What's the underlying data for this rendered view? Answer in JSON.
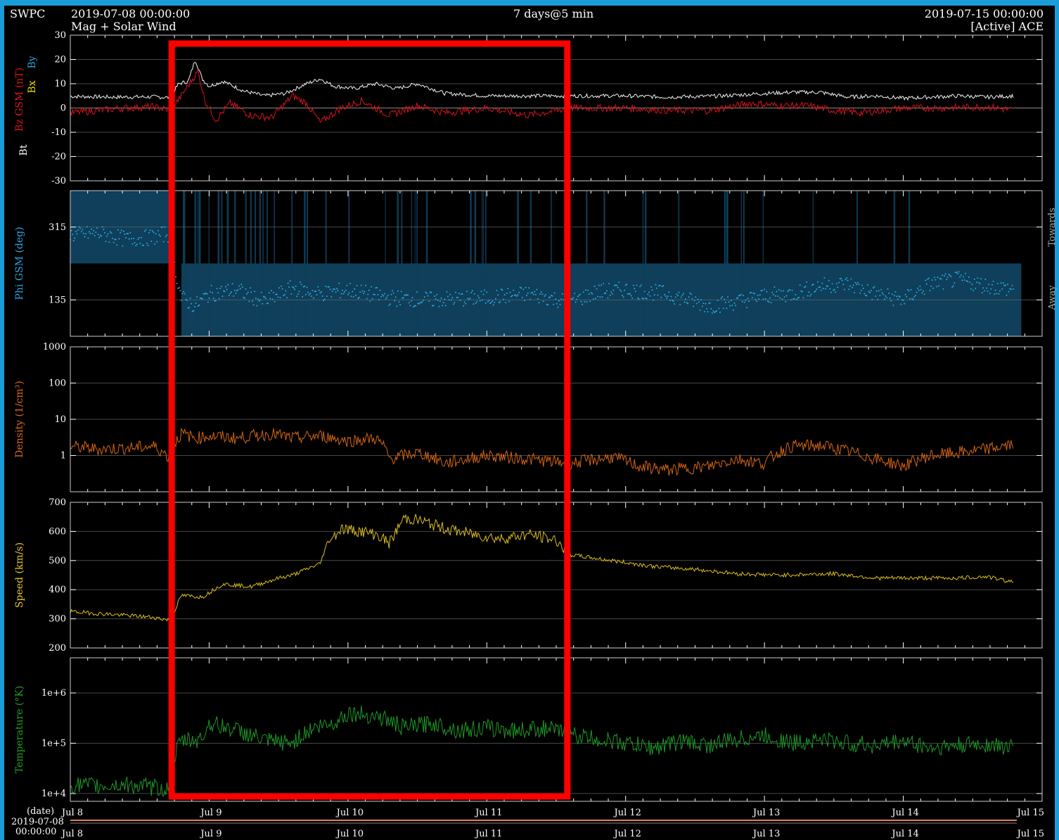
{
  "header": {
    "org": "SWPC",
    "start_time": "2019-07-08 00:00:00",
    "subtitle": "Mag + Solar Wind",
    "span": "7 days@5 min",
    "end_time": "2019-07-15 00:00:00",
    "source": "[Active] ACE"
  },
  "colors": {
    "background": "#000000",
    "frame": "#1a9cd8",
    "bt": "#ffffff",
    "bz": "#e0141e",
    "bx": "#f0e000",
    "by": "#27a6e0",
    "phi": "#2aa8e0",
    "phi_band": "#0f3f5a",
    "density": "#e06a14",
    "speed": "#e8c820",
    "temperature": "#1fa028",
    "highlight": "#ff0000"
  },
  "x_axis": {
    "date_label": "(date)",
    "origin_date": "2019-07-08",
    "origin_time": "00:00:00",
    "ticks": [
      "Jul 8",
      "Jul 9",
      "Jul 10",
      "Jul 11",
      "Jul 12",
      "Jul 13",
      "Jul 14",
      "Jul 15"
    ]
  },
  "highlight_box": {
    "start_day": 0.73,
    "end_day": 3.58,
    "color": "red"
  },
  "chart_data": [
    {
      "type": "line",
      "panel": "mag",
      "ylabel": [
        "Bz GSM (nT)",
        "Bt",
        "Bx",
        "By"
      ],
      "ylim": [
        -30,
        30
      ],
      "yticks": [
        "30",
        "20",
        "10",
        "0",
        "-10",
        "-20",
        "-30"
      ],
      "ytick_values": [
        30,
        20,
        10,
        0,
        -10,
        -20,
        -30
      ],
      "x_unit": "days since 2019-07-08 00:00",
      "series": [
        {
          "name": "Bt",
          "color": "#ffffff",
          "x": [
            0,
            0.3,
            0.6,
            0.72,
            0.78,
            0.85,
            0.9,
            0.95,
            1.0,
            1.1,
            1.25,
            1.4,
            1.55,
            1.7,
            1.8,
            1.9,
            2.05,
            2.2,
            2.35,
            2.5,
            2.7,
            3.0,
            3.3,
            3.6,
            4.0,
            4.3,
            4.7,
            5.0,
            5.2,
            5.4,
            5.6,
            5.8,
            6.0,
            6.2,
            6.4,
            6.6,
            6.8
          ],
          "y": [
            4.8,
            4.5,
            4.6,
            4.3,
            10,
            11,
            20,
            12,
            9,
            11,
            7,
            5,
            6,
            10,
            12,
            9,
            8,
            10,
            8,
            10,
            6,
            5,
            5,
            5,
            5,
            4.5,
            5,
            6,
            6.5,
            6.5,
            4.5,
            5,
            4,
            4.5,
            5,
            4.5,
            5
          ]
        },
        {
          "name": "Bz GSM",
          "color": "#e0141e",
          "x": [
            0,
            0.2,
            0.4,
            0.6,
            0.72,
            0.8,
            0.88,
            0.92,
            0.97,
            1.05,
            1.15,
            1.3,
            1.45,
            1.6,
            1.7,
            1.8,
            1.95,
            2.1,
            2.3,
            2.5,
            2.7,
            3.0,
            3.3,
            3.6,
            4.0,
            4.3,
            4.6,
            4.9,
            5.1,
            5.3,
            5.5,
            5.7,
            6.0,
            6.3,
            6.6,
            6.8
          ],
          "y": [
            -2,
            -1,
            0,
            0.5,
            -1,
            5,
            12,
            15,
            3,
            -5,
            2,
            -3,
            -4,
            5,
            2,
            -6,
            0,
            3,
            -3,
            1,
            -2,
            0,
            -3,
            0,
            0,
            -1,
            -1,
            2,
            1,
            1,
            -1,
            -2,
            0,
            0,
            0.5,
            -1
          ]
        }
      ]
    },
    {
      "type": "scatter",
      "panel": "phi",
      "ylabel": "Phi GSM (deg)",
      "ylim": [
        45,
        405
      ],
      "yticks": [
        "315",
        "135"
      ],
      "ytick_values": [
        315,
        135
      ],
      "side_labels": {
        "towards": "Towards",
        "away": "Away"
      },
      "series": [
        {
          "name": "Phi GSM",
          "color": "#2aa8e0",
          "x": [
            0,
            0.2,
            0.4,
            0.6,
            0.7,
            0.8,
            0.9,
            1.0,
            1.2,
            1.4,
            1.6,
            1.8,
            2.0,
            2.3,
            2.6,
            3.0,
            3.3,
            3.6,
            3.8,
            4.0,
            4.3,
            4.6,
            4.8,
            5.0,
            5.2,
            5.4,
            5.6,
            5.8,
            6.0,
            6.2,
            6.4,
            6.6,
            6.8
          ],
          "y": [
            295,
            300,
            285,
            290,
            300,
            140,
            120,
            150,
            160,
            130,
            165,
            150,
            160,
            140,
            135,
            140,
            150,
            130,
            155,
            160,
            150,
            120,
            130,
            145,
            150,
            170,
            175,
            150,
            135,
            175,
            185,
            170,
            160
          ]
        }
      ]
    },
    {
      "type": "line",
      "panel": "density",
      "ylabel": "Density (1/cm³)",
      "yscale": "log",
      "ylim": [
        0.1,
        1000
      ],
      "yticks": [
        "1000",
        "100",
        "10",
        "1"
      ],
      "ytick_values": [
        1000,
        100,
        10,
        1
      ],
      "series": [
        {
          "name": "Density",
          "color": "#e06a14",
          "x": [
            0,
            0.2,
            0.4,
            0.6,
            0.72,
            0.8,
            0.9,
            1.0,
            1.2,
            1.45,
            1.6,
            1.8,
            2.0,
            2.2,
            2.3,
            2.5,
            2.7,
            3.0,
            3.3,
            3.6,
            3.9,
            4.1,
            4.3,
            4.6,
            4.8,
            5.0,
            5.2,
            5.4,
            5.6,
            5.8,
            6.0,
            6.2,
            6.4,
            6.6,
            6.8
          ],
          "y": [
            1.8,
            1.5,
            1.6,
            1.8,
            0.8,
            4,
            3,
            3.5,
            3,
            4,
            3,
            3.5,
            2.5,
            3,
            0.8,
            1.2,
            0.6,
            1,
            0.8,
            0.6,
            0.9,
            0.5,
            0.4,
            0.5,
            0.8,
            0.6,
            1.8,
            1.9,
            1.3,
            0.8,
            0.5,
            1,
            1.2,
            1.5,
            2
          ]
        }
      ]
    },
    {
      "type": "line",
      "panel": "speed",
      "ylabel": "Speed (km/s)",
      "ylim": [
        200,
        700
      ],
      "yticks": [
        "700",
        "600",
        "500",
        "400",
        "300",
        "200"
      ],
      "ytick_values": [
        700,
        600,
        500,
        400,
        300,
        200
      ],
      "series": [
        {
          "name": "Speed",
          "color": "#e8c820",
          "x": [
            0,
            0.2,
            0.4,
            0.6,
            0.72,
            0.8,
            0.95,
            1.1,
            1.3,
            1.5,
            1.6,
            1.8,
            1.85,
            1.95,
            2.1,
            2.2,
            2.3,
            2.4,
            2.5,
            2.7,
            2.9,
            3.1,
            3.3,
            3.5,
            3.6,
            3.9,
            4.2,
            4.5,
            4.8,
            5.1,
            5.5,
            5.8,
            6.1,
            6.4,
            6.6,
            6.8
          ],
          "y": [
            325,
            318,
            312,
            305,
            295,
            380,
            375,
            420,
            410,
            440,
            450,
            490,
            560,
            610,
            600,
            590,
            560,
            645,
            640,
            610,
            590,
            575,
            590,
            570,
            520,
            500,
            480,
            470,
            455,
            450,
            455,
            440,
            440,
            440,
            445,
            425
          ]
        }
      ]
    },
    {
      "type": "line",
      "panel": "temperature",
      "ylabel": "Temperature (°K)",
      "yscale": "log",
      "ylim": [
        7000,
        5000000
      ],
      "yticks": [
        "1e+6",
        "1e+5",
        "1e+4"
      ],
      "ytick_values": [
        1000000,
        100000,
        10000
      ],
      "series": [
        {
          "name": "Temperature",
          "color": "#1fa028",
          "x": [
            0,
            0.2,
            0.4,
            0.6,
            0.72,
            0.8,
            0.95,
            1.0,
            1.2,
            1.4,
            1.6,
            1.75,
            1.9,
            2.0,
            2.2,
            2.4,
            2.6,
            2.8,
            3.0,
            3.2,
            3.4,
            3.6,
            3.8,
            4.0,
            4.2,
            4.4,
            4.6,
            4.8,
            5.0,
            5.2,
            5.4,
            5.6,
            5.8,
            6.0,
            6.2,
            6.4,
            6.6,
            6.8
          ],
          "y": [
            15000,
            14000,
            15000,
            13000,
            12000,
            110000,
            120000,
            250000,
            180000,
            110000,
            100000,
            200000,
            250000,
            400000,
            350000,
            200000,
            250000,
            180000,
            200000,
            180000,
            200000,
            150000,
            120000,
            100000,
            80000,
            110000,
            90000,
            120000,
            140000,
            100000,
            120000,
            100000,
            90000,
            110000,
            80000,
            90000,
            95000,
            80000
          ]
        }
      ]
    }
  ]
}
